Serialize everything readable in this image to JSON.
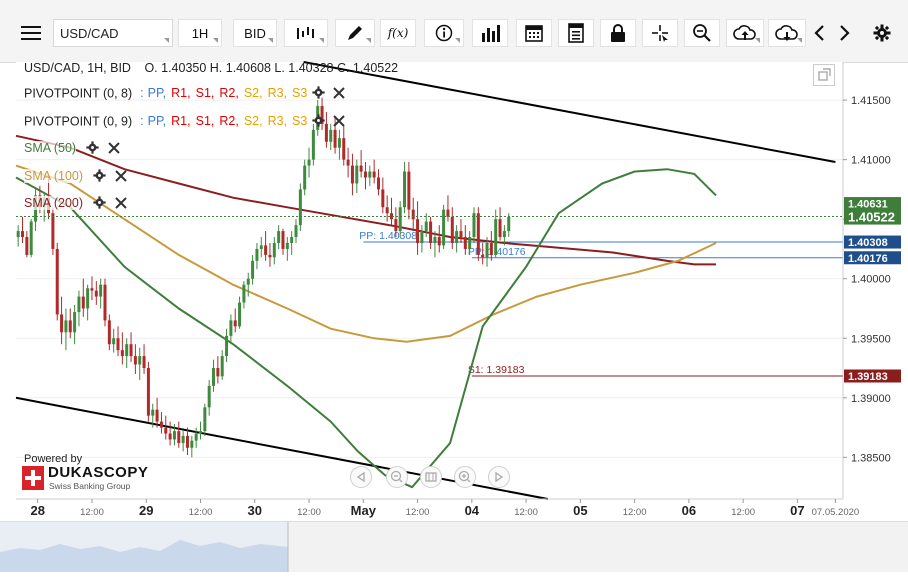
{
  "toolbar": {
    "symbol": "USD/CAD",
    "timeframe": "1H",
    "price_side": "BID",
    "fx_label": "f(x)"
  },
  "header": {
    "symbol_line": "USD/CAD, 1H, BID",
    "ohlc": "O. 1.40350 H. 1.40608 L. 1.40328 C. 1.40522"
  },
  "indicators": [
    {
      "name": "PIVOTPOINT (0, 8)",
      "items": [
        "PP,",
        "R1,",
        "S1,",
        "R2,",
        "S2,",
        "R3,",
        "S3"
      ],
      "colors": [
        "#3a7bd5",
        "#e00000",
        "#e00000",
        "#e00000",
        "#e8a000",
        "#e8a000",
        "#e8a000"
      ]
    },
    {
      "name": "PIVOTPOINT (0, 9)",
      "items": [
        "PP,",
        "R1,",
        "S1,",
        "R2,",
        "S2,",
        "R3,",
        "S3"
      ],
      "colors": [
        "#3a7bd5",
        "#e00000",
        "#e00000",
        "#e00000",
        "#e8a000",
        "#e8a000",
        "#e8a000"
      ]
    },
    {
      "name": "SMA (50)",
      "color": "#3e7d3a"
    },
    {
      "name": "SMA (100)",
      "color": "#c79a3c"
    },
    {
      "name": "SMA (200)",
      "color": "#8c1d1d"
    }
  ],
  "branding": {
    "powered_by": "Powered by",
    "logo_name": "DUKASCOPY",
    "logo_tagline": "Swiss Banking Group"
  },
  "chart_data": {
    "type": "candlestick",
    "symbol": "USD/CAD",
    "interval": "1H",
    "y_ticks": [
      "1.41500",
      "1.41000",
      "1.40500",
      "1.40000",
      "1.39500",
      "1.39000",
      "1.38500"
    ],
    "y_tick_values": [
      1.415,
      1.41,
      1.405,
      1.4,
      1.395,
      1.39,
      1.385
    ],
    "ylim": [
      1.3815,
      1.4182
    ],
    "x_labels": [
      {
        "text": "28",
        "bold": true,
        "x": 0.0
      },
      {
        "text": "12:00",
        "bold": false,
        "x": 0.5
      },
      {
        "text": "29",
        "bold": true,
        "x": 1.0
      },
      {
        "text": "12:00",
        "bold": false,
        "x": 1.5
      },
      {
        "text": "30",
        "bold": true,
        "x": 2.0
      },
      {
        "text": "12:00",
        "bold": false,
        "x": 2.5
      },
      {
        "text": "May",
        "bold": true,
        "x": 3.0
      },
      {
        "text": "12:00",
        "bold": false,
        "x": 3.5
      },
      {
        "text": "04",
        "bold": true,
        "x": 4.0
      },
      {
        "text": "12:00",
        "bold": false,
        "x": 4.5
      },
      {
        "text": "05",
        "bold": true,
        "x": 5.0
      },
      {
        "text": "12:00",
        "bold": false,
        "x": 5.5
      },
      {
        "text": "06",
        "bold": true,
        "x": 6.0
      },
      {
        "text": "12:00",
        "bold": false,
        "x": 6.5
      },
      {
        "text": "07",
        "bold": true,
        "x": 7.0
      },
      {
        "text": "07.05.2020",
        "bold": false,
        "x": 7.35
      }
    ],
    "xlim": [
      -0.2,
      7.42
    ],
    "price_tags": [
      {
        "text": "1.40631",
        "value": 1.40631,
        "bg": "#3e7d3a"
      },
      {
        "text": "1.40522",
        "value": 1.40522,
        "bg": "#3e7d3a",
        "large": true
      },
      {
        "text": "1.40308",
        "value": 1.40308,
        "bg": "#1f4e8c"
      },
      {
        "text": "1.40176",
        "value": 1.40176,
        "bg": "#1f4e8c"
      },
      {
        "text": "1.39183",
        "value": 1.39183,
        "bg": "#8c1d1d"
      }
    ],
    "pivot_lines": [
      {
        "label": "PP: 1.40308",
        "value": 1.40308,
        "x_start": 3.0,
        "color": "#3a7bd5"
      },
      {
        "label": "PP: 1.40176",
        "value": 1.40176,
        "x_start": 4.0,
        "color": "#3a7bd5"
      },
      {
        "label": "S1: 1.39183",
        "value": 1.39183,
        "x_start": 4.0,
        "color": "#8c1d1d"
      }
    ],
    "trend_lines": [
      {
        "from": [
          2.45,
          1.4182
        ],
        "to": [
          7.35,
          1.4098
        ]
      },
      {
        "from": [
          -0.2,
          1.39
        ],
        "to": [
          4.7,
          1.3815
        ]
      }
    ],
    "last_price": 1.40522,
    "sma50": [
      [
        -0.2,
        1.4085
      ],
      [
        0.3,
        1.406
      ],
      [
        0.8,
        1.401
      ],
      [
        1.3,
        1.3975
      ],
      [
        1.8,
        1.3945
      ],
      [
        2.3,
        1.391
      ],
      [
        2.7,
        1.388
      ],
      [
        2.95,
        1.3855
      ],
      [
        3.2,
        1.3835
      ],
      [
        3.45,
        1.3825
      ],
      [
        3.8,
        1.3862
      ],
      [
        4.1,
        1.396
      ],
      [
        4.5,
        1.401
      ],
      [
        4.8,
        1.4055
      ],
      [
        5.2,
        1.408
      ],
      [
        5.5,
        1.409
      ],
      [
        5.8,
        1.4092
      ],
      [
        6.05,
        1.4088
      ],
      [
        6.25,
        1.407
      ]
    ],
    "sma100": [
      [
        -0.2,
        1.4095
      ],
      [
        0.3,
        1.408
      ],
      [
        0.8,
        1.405
      ],
      [
        1.3,
        1.402
      ],
      [
        1.8,
        1.3995
      ],
      [
        2.3,
        1.3975
      ],
      [
        2.7,
        1.3958
      ],
      [
        3.1,
        1.395
      ],
      [
        3.4,
        1.3947
      ],
      [
        3.8,
        1.3952
      ],
      [
        4.2,
        1.397
      ],
      [
        4.6,
        1.3985
      ],
      [
        5.0,
        1.3995
      ],
      [
        5.5,
        1.4005
      ],
      [
        5.9,
        1.4015
      ],
      [
        6.25,
        1.403
      ]
    ],
    "sma200": [
      [
        -0.2,
        1.412
      ],
      [
        0.3,
        1.411
      ],
      [
        0.8,
        1.4092
      ],
      [
        1.3,
        1.408
      ],
      [
        1.8,
        1.4068
      ],
      [
        2.3,
        1.406
      ],
      [
        2.8,
        1.4052
      ],
      [
        3.3,
        1.4044
      ],
      [
        3.8,
        1.4035
      ],
      [
        4.3,
        1.403
      ],
      [
        4.8,
        1.4026
      ],
      [
        5.3,
        1.4022
      ],
      [
        5.8,
        1.4015
      ],
      [
        6.05,
        1.4012
      ],
      [
        6.25,
        1.4012
      ]
    ],
    "candles": [
      [
        -0.18,
        1.4035,
        1.4045,
        1.4027,
        1.404
      ],
      [
        -0.14,
        1.404,
        1.4052,
        1.403,
        1.4035
      ],
      [
        -0.1,
        1.4035,
        1.404,
        1.4018,
        1.402
      ],
      [
        -0.06,
        1.402,
        1.405,
        1.4018,
        1.4048
      ],
      [
        -0.02,
        1.4048,
        1.4075,
        1.404,
        1.407
      ],
      [
        0.02,
        1.407,
        1.4078,
        1.4055,
        1.406
      ],
      [
        0.06,
        1.406,
        1.4072,
        1.4048,
        1.4068
      ],
      [
        0.1,
        1.4068,
        1.4085,
        1.405,
        1.4055
      ],
      [
        0.14,
        1.4055,
        1.406,
        1.402,
        1.4025
      ],
      [
        0.18,
        1.4025,
        1.403,
        1.3965,
        1.397
      ],
      [
        0.22,
        1.397,
        1.3985,
        1.3945,
        1.3955
      ],
      [
        0.26,
        1.3955,
        1.3975,
        1.394,
        1.3965
      ],
      [
        0.3,
        1.3965,
        1.3975,
        1.395,
        1.3955
      ],
      [
        0.34,
        1.3955,
        1.3978,
        1.3945,
        1.3972
      ],
      [
        0.38,
        1.3972,
        1.399,
        1.396,
        1.3985
      ],
      [
        0.42,
        1.3985,
        1.4,
        1.3968,
        1.3975
      ],
      [
        0.46,
        1.3975,
        1.3995,
        1.3965,
        1.3992
      ],
      [
        0.5,
        1.3992,
        1.4002,
        1.3982,
        1.399
      ],
      [
        0.54,
        1.399,
        1.3998,
        1.3978,
        1.3985
      ],
      [
        0.58,
        1.3985,
        1.4,
        1.3975,
        1.3995
      ],
      [
        0.62,
        1.3995,
        1.4,
        1.396,
        1.3965
      ],
      [
        0.66,
        1.3965,
        1.397,
        1.394,
        1.3945
      ],
      [
        0.7,
        1.3945,
        1.3958,
        1.3938,
        1.395
      ],
      [
        0.74,
        1.395,
        1.396,
        1.3935,
        1.394
      ],
      [
        0.78,
        1.394,
        1.3955,
        1.3928,
        1.3935
      ],
      [
        0.82,
        1.3935,
        1.395,
        1.3925,
        1.3945
      ],
      [
        0.86,
        1.3945,
        1.3955,
        1.393,
        1.3935
      ],
      [
        0.9,
        1.3935,
        1.3945,
        1.392,
        1.3928
      ],
      [
        0.94,
        1.3928,
        1.3942,
        1.3915,
        1.3935
      ],
      [
        0.98,
        1.3935,
        1.3945,
        1.392,
        1.3925
      ],
      [
        1.02,
        1.3925,
        1.393,
        1.388,
        1.3885
      ],
      [
        1.06,
        1.3885,
        1.3895,
        1.3875,
        1.389
      ],
      [
        1.1,
        1.389,
        1.39,
        1.3875,
        1.388
      ],
      [
        1.14,
        1.388,
        1.3888,
        1.387,
        1.3875
      ],
      [
        1.18,
        1.3875,
        1.3885,
        1.3865,
        1.387
      ],
      [
        1.22,
        1.387,
        1.388,
        1.386,
        1.3865
      ],
      [
        1.26,
        1.3865,
        1.3878,
        1.386,
        1.3872
      ],
      [
        1.3,
        1.3872,
        1.388,
        1.3858,
        1.3862
      ],
      [
        1.34,
        1.3862,
        1.3872,
        1.3855,
        1.3868
      ],
      [
        1.38,
        1.3868,
        1.3875,
        1.3852,
        1.3858
      ],
      [
        1.42,
        1.3858,
        1.3868,
        1.385,
        1.3864
      ],
      [
        1.46,
        1.3864,
        1.3875,
        1.3858,
        1.387
      ],
      [
        1.5,
        1.387,
        1.388,
        1.3865,
        1.3872
      ],
      [
        1.54,
        1.3872,
        1.3895,
        1.3868,
        1.3892
      ],
      [
        1.58,
        1.3892,
        1.3915,
        1.3885,
        1.391
      ],
      [
        1.62,
        1.391,
        1.3932,
        1.3905,
        1.3925
      ],
      [
        1.66,
        1.3925,
        1.3935,
        1.3912,
        1.3918
      ],
      [
        1.7,
        1.3918,
        1.394,
        1.3915,
        1.3935
      ],
      [
        1.74,
        1.3935,
        1.3958,
        1.393,
        1.3952
      ],
      [
        1.78,
        1.3952,
        1.397,
        1.3945,
        1.3965
      ],
      [
        1.82,
        1.3965,
        1.3975,
        1.3955,
        1.396
      ],
      [
        1.86,
        1.396,
        1.3985,
        1.3958,
        1.398
      ],
      [
        1.9,
        1.398,
        1.3998,
        1.3975,
        1.3995
      ],
      [
        1.94,
        1.3995,
        1.4005,
        1.3985,
        1.4
      ],
      [
        1.98,
        1.4,
        1.402,
        1.3995,
        1.4015
      ],
      [
        2.02,
        1.4015,
        1.403,
        1.4008,
        1.4025
      ],
      [
        2.06,
        1.4025,
        1.4035,
        1.4018,
        1.4028
      ],
      [
        2.1,
        1.4028,
        1.404,
        1.4015,
        1.402
      ],
      [
        2.14,
        1.402,
        1.403,
        1.401,
        1.4018
      ],
      [
        2.18,
        1.4018,
        1.4035,
        1.4012,
        1.403
      ],
      [
        2.22,
        1.403,
        1.4045,
        1.4025,
        1.404
      ],
      [
        2.26,
        1.404,
        1.4042,
        1.402,
        1.4025
      ],
      [
        2.3,
        1.4025,
        1.4035,
        1.4015,
        1.403
      ],
      [
        2.34,
        1.403,
        1.404,
        1.402,
        1.4035
      ],
      [
        2.38,
        1.4035,
        1.405,
        1.403,
        1.4045
      ],
      [
        2.42,
        1.4045,
        1.408,
        1.404,
        1.4075
      ],
      [
        2.46,
        1.4075,
        1.41,
        1.407,
        1.4095
      ],
      [
        2.5,
        1.4095,
        1.411,
        1.4085,
        1.41
      ],
      [
        2.54,
        1.41,
        1.413,
        1.4095,
        1.4125
      ],
      [
        2.58,
        1.4125,
        1.415,
        1.412,
        1.4145
      ],
      [
        2.62,
        1.4145,
        1.4152,
        1.4125,
        1.413
      ],
      [
        2.66,
        1.413,
        1.414,
        1.411,
        1.4115
      ],
      [
        2.7,
        1.4115,
        1.413,
        1.4108,
        1.4125
      ],
      [
        2.74,
        1.4125,
        1.4135,
        1.4105,
        1.411
      ],
      [
        2.78,
        1.411,
        1.4125,
        1.41,
        1.4118
      ],
      [
        2.82,
        1.4118,
        1.4128,
        1.4095,
        1.41
      ],
      [
        2.86,
        1.41,
        1.411,
        1.4085,
        1.4095
      ],
      [
        2.9,
        1.4095,
        1.4105,
        1.407,
        1.408
      ],
      [
        2.94,
        1.408,
        1.41,
        1.4072,
        1.4095
      ],
      [
        2.98,
        1.4095,
        1.4108,
        1.4085,
        1.409
      ],
      [
        3.02,
        1.409,
        1.4098,
        1.4075,
        1.4085
      ],
      [
        3.06,
        1.4085,
        1.4095,
        1.4078,
        1.409
      ],
      [
        3.1,
        1.409,
        1.41,
        1.408,
        1.4085
      ],
      [
        3.14,
        1.4085,
        1.4092,
        1.407,
        1.4075
      ],
      [
        3.18,
        1.4075,
        1.4085,
        1.4055,
        1.406
      ],
      [
        3.22,
        1.406,
        1.407,
        1.4048,
        1.4055
      ],
      [
        3.26,
        1.4055,
        1.4068,
        1.4045,
        1.405
      ],
      [
        3.3,
        1.405,
        1.406,
        1.4035,
        1.404
      ],
      [
        3.34,
        1.404,
        1.4065,
        1.4035,
        1.406
      ],
      [
        3.38,
        1.406,
        1.4098,
        1.4055,
        1.409
      ],
      [
        3.42,
        1.409,
        1.4098,
        1.405,
        1.4058
      ],
      [
        3.46,
        1.4058,
        1.4068,
        1.404,
        1.405
      ],
      [
        3.5,
        1.405,
        1.4065,
        1.402,
        1.403
      ],
      [
        3.54,
        1.403,
        1.4045,
        1.4022,
        1.404
      ],
      [
        3.58,
        1.404,
        1.4055,
        1.4035,
        1.4048
      ],
      [
        3.62,
        1.4048,
        1.4052,
        1.4025,
        1.403
      ],
      [
        3.66,
        1.403,
        1.404,
        1.4018,
        1.4035
      ],
      [
        3.7,
        1.4035,
        1.4045,
        1.4022,
        1.4028
      ],
      [
        3.74,
        1.4028,
        1.4062,
        1.4025,
        1.4058
      ],
      [
        3.78,
        1.4058,
        1.407,
        1.4048,
        1.4052
      ],
      [
        3.82,
        1.4052,
        1.406,
        1.4025,
        1.403
      ],
      [
        3.86,
        1.403,
        1.4045,
        1.4022,
        1.404
      ],
      [
        3.9,
        1.404,
        1.405,
        1.403,
        1.4035
      ],
      [
        3.94,
        1.4035,
        1.4045,
        1.402,
        1.4025
      ],
      [
        3.98,
        1.4025,
        1.404,
        1.402,
        1.4035
      ],
      [
        4.02,
        1.4035,
        1.406,
        1.403,
        1.4055
      ],
      [
        4.06,
        1.4055,
        1.406,
        1.4015,
        1.402
      ],
      [
        4.1,
        1.402,
        1.403,
        1.4012,
        1.4018
      ],
      [
        4.14,
        1.4018,
        1.4035,
        1.401,
        1.403
      ],
      [
        4.18,
        1.403,
        1.404,
        1.4015,
        1.402
      ],
      [
        4.22,
        1.402,
        1.4058,
        1.4018,
        1.405
      ],
      [
        4.26,
        1.405,
        1.406,
        1.4032,
        1.4035
      ],
      [
        4.3,
        1.4035,
        1.4045,
        1.4028,
        1.404
      ],
      [
        4.34,
        1.404,
        1.4055,
        1.4035,
        1.4052
      ]
    ]
  }
}
